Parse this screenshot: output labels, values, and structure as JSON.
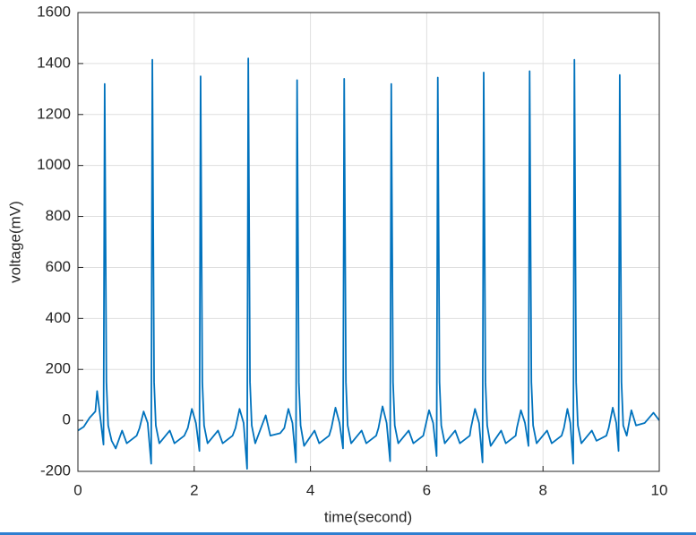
{
  "chart_data": {
    "type": "line",
    "xlabel": "time(second)",
    "ylabel": "voltage(mV)",
    "x": [
      0,
      0.1,
      0.2,
      0.3,
      0.33,
      0.37,
      0.44,
      0.46,
      0.49,
      0.52,
      0.58,
      0.65,
      0.76,
      0.84,
      1.01,
      1.06,
      1.13,
      1.2,
      1.26,
      1.28,
      1.31,
      1.34,
      1.4,
      1.58,
      1.66,
      1.83,
      1.89,
      1.96,
      2.03,
      2.09,
      2.11,
      2.14,
      2.17,
      2.23,
      2.41,
      2.49,
      2.66,
      2.71,
      2.78,
      2.85,
      2.91,
      2.93,
      2.96,
      2.99,
      3.05,
      3.23,
      3.31,
      3.48,
      3.55,
      3.62,
      3.69,
      3.75,
      3.77,
      3.8,
      3.83,
      3.89,
      4.07,
      4.15,
      4.32,
      4.36,
      4.43,
      4.5,
      4.56,
      4.58,
      4.61,
      4.64,
      4.7,
      4.88,
      4.96,
      5.13,
      5.17,
      5.24,
      5.31,
      5.37,
      5.39,
      5.42,
      5.45,
      5.51,
      5.69,
      5.77,
      5.94,
      5.97,
      6.04,
      6.11,
      6.17,
      6.19,
      6.22,
      6.25,
      6.31,
      6.49,
      6.57,
      6.74,
      6.76,
      6.83,
      6.9,
      6.96,
      6.98,
      7.01,
      7.04,
      7.1,
      7.28,
      7.36,
      7.53,
      7.55,
      7.62,
      7.69,
      7.75,
      7.77,
      7.8,
      7.83,
      7.89,
      8.07,
      8.15,
      8.32,
      8.36,
      8.42,
      8.47,
      8.52,
      8.54,
      8.57,
      8.6,
      8.66,
      8.84,
      8.92,
      9.09,
      9.13,
      9.2,
      9.26,
      9.3,
      9.32,
      9.35,
      9.38,
      9.44,
      9.52,
      9.6,
      9.75,
      9.9,
      10
    ],
    "series": [
      {
        "color": "#0072bd",
        "values": [
          -40,
          -25,
          10,
          35,
          115,
          40,
          -95,
          1320,
          150,
          -20,
          -80,
          -110,
          -40,
          -90,
          -60,
          -30,
          35,
          -10,
          -170,
          1415,
          150,
          -20,
          -90,
          -40,
          -90,
          -60,
          -30,
          45,
          -10,
          -120,
          1350,
          150,
          -20,
          -90,
          -40,
          -90,
          -60,
          -30,
          45,
          -10,
          -190,
          1420,
          150,
          -20,
          -90,
          20,
          -60,
          -50,
          -30,
          45,
          -10,
          -165,
          1335,
          150,
          -20,
          -100,
          -40,
          -90,
          -60,
          -30,
          50,
          -10,
          -110,
          1340,
          150,
          -20,
          -90,
          -40,
          -90,
          -60,
          -30,
          55,
          -10,
          -160,
          1320,
          150,
          -20,
          -90,
          -40,
          -90,
          -60,
          -30,
          40,
          -10,
          -140,
          1345,
          150,
          -20,
          -90,
          -40,
          -90,
          -60,
          -30,
          45,
          -10,
          -165,
          1365,
          150,
          -20,
          -100,
          -40,
          -90,
          -60,
          -30,
          40,
          -10,
          -100,
          1370,
          150,
          -20,
          -90,
          -40,
          -90,
          -60,
          -30,
          45,
          -10,
          -170,
          1415,
          150,
          -20,
          -90,
          -40,
          -80,
          -60,
          -30,
          50,
          -10,
          -120,
          1355,
          150,
          -20,
          -60,
          40,
          -20,
          -10,
          30,
          0
        ]
      }
    ],
    "xlim": [
      0,
      10
    ],
    "xticks": [
      0,
      2,
      4,
      6,
      8,
      10
    ],
    "ylim": [
      -200,
      1600
    ],
    "yticks": [
      -200,
      0,
      200,
      400,
      600,
      800,
      1000,
      1200,
      1400,
      1600
    ],
    "grid": true
  }
}
